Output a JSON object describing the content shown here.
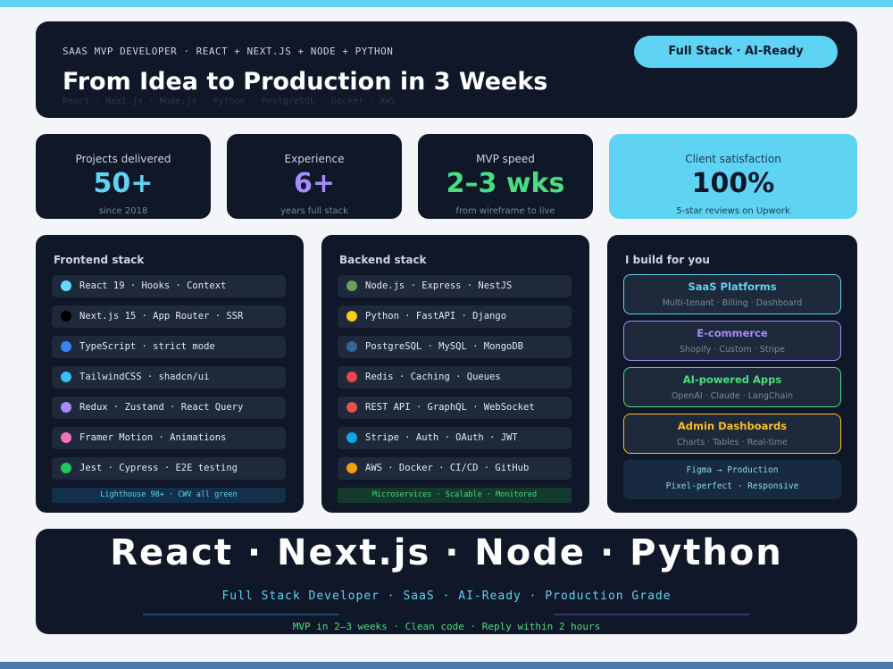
{
  "header": {
    "kicker": "SAAS MVP DEVELOPER · REACT + NEXT.JS + NODE + PYTHON",
    "title": "From Idea to Production in 3 Weeks",
    "tech_line": "React · Next.js · Node.js · Python · PostgreSQL · Docker · AWS",
    "badge": "Full Stack · AI-Ready"
  },
  "stats": [
    {
      "label": "Projects delivered",
      "value": "50+",
      "note": "since 2018",
      "color": "#5ed3f3"
    },
    {
      "label": "Experience",
      "value": "6+",
      "note": "years full stack",
      "color": "#a78bfa"
    },
    {
      "label": "MVP speed",
      "value": "2–3 wks",
      "note": "from wireframe to live",
      "color": "#4ade80"
    },
    {
      "label": "Client satisfaction",
      "value": "100%",
      "note": "5-star reviews on Upwork",
      "color": "#0f172a"
    }
  ],
  "frontend": {
    "title": "Frontend stack",
    "items": [
      {
        "text": "React 19 · Hooks · Context",
        "color": "#61dafb"
      },
      {
        "text": "Next.js 15 · App Router · SSR",
        "color": "#000000"
      },
      {
        "text": "TypeScript · strict mode",
        "color": "#3b82f6"
      },
      {
        "text": "TailwindCSS · shadcn/ui",
        "color": "#38bdf8"
      },
      {
        "text": "Redux · Zustand · React Query",
        "color": "#a78bfa"
      },
      {
        "text": "Framer Motion · Animations",
        "color": "#f472b6"
      },
      {
        "text": "Jest · Cypress · E2E testing",
        "color": "#22c55e"
      }
    ],
    "footer": "Lighthouse 98+ · CWV all green"
  },
  "backend": {
    "title": "Backend stack",
    "items": [
      {
        "text": "Node.js · Express · NestJS",
        "color": "#68a063"
      },
      {
        "text": "Python · FastAPI · Django",
        "color": "#facc15"
      },
      {
        "text": "PostgreSQL · MySQL · MongoDB",
        "color": "#336791"
      },
      {
        "text": "Redis · Caching · Queues",
        "color": "#ef4444"
      },
      {
        "text": "REST API · GraphQL · WebSocket",
        "color": "#e5534b"
      },
      {
        "text": "Stripe · Auth · OAuth · JWT",
        "color": "#0ea5e9"
      },
      {
        "text": "AWS · Docker · CI/CD · GitHub",
        "color": "#f59e0b"
      }
    ],
    "footer": "Microservices · Scalable · Monitored"
  },
  "services": {
    "title": "I build for you",
    "items": [
      {
        "name": "SaaS Platforms",
        "detail": "Multi-tenant · Billing · Dashboard",
        "color": "#5ed3f3"
      },
      {
        "name": "E-commerce",
        "detail": "Shopify · Custom · Stripe",
        "color": "#a78bfa"
      },
      {
        "name": "AI-powered Apps",
        "detail": "OpenAI · Claude · LangChain",
        "color": "#4ade80"
      },
      {
        "name": "Admin Dashboards",
        "detail": "Charts · Tables · Real-time",
        "color": "#fbbf24"
      }
    ],
    "note_lines": [
      "Figma → Production",
      "Pixel-perfect · Responsive"
    ]
  },
  "banner": {
    "title": "React · Next.js · Node · Python",
    "subtitle": "Full Stack Developer · SaaS · AI-Ready · Production Grade",
    "footer": "MVP in 2–3 weeks · Clean code · Reply within 2 hours"
  }
}
